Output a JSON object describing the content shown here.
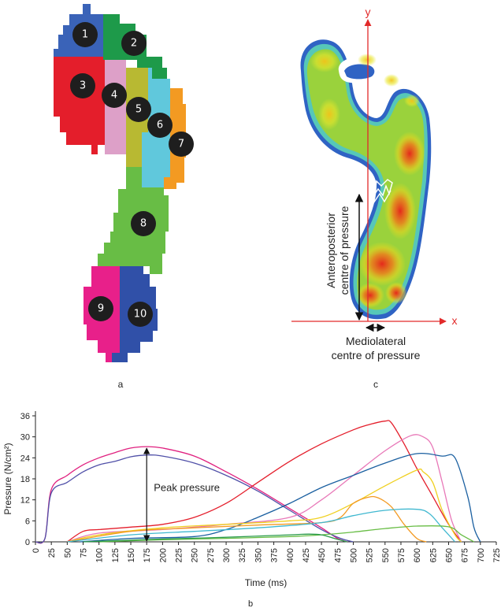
{
  "panels": {
    "a": {
      "label": "a"
    },
    "b": {
      "label": "b"
    },
    "c": {
      "label": "c"
    }
  },
  "zones": [
    {
      "id": "1",
      "color": "#3a63b8"
    },
    {
      "id": "2",
      "color": "#1e9a4a"
    },
    {
      "id": "3",
      "color": "#e41e2b"
    },
    {
      "id": "4",
      "color": "#dda0c8"
    },
    {
      "id": "5",
      "color": "#b8b932"
    },
    {
      "id": "6",
      "color": "#60c8dc"
    },
    {
      "id": "7",
      "color": "#f39a22"
    },
    {
      "id": "8",
      "color": "#68bd45"
    },
    {
      "id": "9",
      "color": "#e8208a"
    },
    {
      "id": "10",
      "color": "#3050a8"
    }
  ],
  "heatmap": {
    "y_axis": "y",
    "x_axis": "x",
    "anteroposterior_line1": "Anteroposterior",
    "anteroposterior_line2": "centre of pressure",
    "mediolateral_line1": "Mediolateral",
    "mediolateral_line2": "centre of pressure"
  },
  "chart_data": {
    "type": "line",
    "xlabel": "Time (ms)",
    "ylabel": "Pressure (N/cm²)",
    "xlim": [
      0,
      725
    ],
    "ylim": [
      0,
      36
    ],
    "xticks": [
      0,
      25,
      50,
      75,
      100,
      125,
      150,
      175,
      200,
      225,
      250,
      275,
      300,
      325,
      350,
      375,
      400,
      425,
      450,
      475,
      500,
      525,
      550,
      575,
      600,
      625,
      650,
      675,
      700,
      725
    ],
    "yticks": [
      0,
      6,
      12,
      18,
      24,
      30,
      36
    ],
    "annotation": "Peak pressure",
    "series": [
      {
        "color": "#e0207f",
        "x": [
          0,
          15,
          25,
          50,
          75,
          100,
          125,
          150,
          175,
          200,
          250,
          300,
          350,
          400,
          450,
          475,
          490
        ],
        "y": [
          0,
          1,
          15,
          19,
          22,
          24,
          25.5,
          26.8,
          27.2,
          26.8,
          24.5,
          20,
          15,
          9.5,
          4,
          1,
          0
        ]
      },
      {
        "color": "#5050a8",
        "x": [
          0,
          15,
          25,
          50,
          75,
          100,
          125,
          150,
          175,
          200,
          250,
          300,
          350,
          400,
          450,
          480,
          500
        ],
        "y": [
          0,
          1,
          14,
          17,
          20,
          22,
          23,
          24.3,
          24.8,
          24.5,
          22.5,
          19,
          14.5,
          9,
          3.5,
          1,
          0
        ]
      },
      {
        "color": "#e41e2b",
        "x": [
          50,
          75,
          100,
          150,
          200,
          250,
          300,
          350,
          400,
          450,
          500,
          525,
          550,
          560,
          580,
          600,
          625,
          650,
          670
        ],
        "y": [
          0,
          3,
          3.5,
          4.2,
          5,
          7,
          11,
          17,
          23,
          28,
          32,
          33.5,
          34.5,
          34,
          28,
          21,
          13,
          5,
          0
        ]
      },
      {
        "color": "#e878b8",
        "x": [
          50,
          100,
          200,
          300,
          400,
          450,
          500,
          550,
          590,
          610,
          625,
          640,
          655,
          670
        ],
        "y": [
          0,
          2.5,
          3.5,
          5,
          7,
          12,
          19,
          26,
          30.3,
          30,
          27,
          17,
          6,
          0
        ]
      },
      {
        "color": "#1a5fa0",
        "x": [
          70,
          150,
          250,
          300,
          350,
          400,
          450,
          500,
          550,
          600,
          640,
          660,
          680,
          690,
          700
        ],
        "y": [
          0,
          1,
          1.5,
          3.5,
          7,
          11,
          15.5,
          19,
          22.5,
          25.2,
          24.5,
          24,
          13,
          4,
          0
        ]
      },
      {
        "color": "#f0d020",
        "x": [
          50,
          100,
          200,
          300,
          400,
          450,
          500,
          550,
          600,
          610,
          625,
          640,
          660,
          670
        ],
        "y": [
          0,
          2,
          4,
          5,
          6,
          7,
          11,
          16,
          20.5,
          20,
          17,
          9,
          2,
          0
        ]
      },
      {
        "color": "#f39a22",
        "x": [
          50,
          150,
          250,
          350,
          450,
          480,
          500,
          525,
          540,
          560,
          580,
          600,
          615
        ],
        "y": [
          0,
          3,
          4,
          4.8,
          5.5,
          7,
          11,
          12.8,
          12.5,
          10,
          5,
          1,
          0
        ]
      },
      {
        "color": "#40b8d0",
        "x": [
          50,
          150,
          250,
          350,
          450,
          500,
          550,
          600,
          620,
          640,
          660
        ],
        "y": [
          0,
          2,
          3,
          4,
          5.5,
          7.5,
          9,
          9.3,
          8,
          4,
          0
        ]
      },
      {
        "color": "#68bd45",
        "x": [
          100,
          200,
          300,
          400,
          450,
          500,
          550,
          600,
          650,
          670,
          690
        ],
        "y": [
          0,
          0.6,
          1,
          1.5,
          2,
          2.8,
          3.8,
          4.5,
          4.3,
          2,
          0
        ]
      },
      {
        "color": "#2a9a4a",
        "x": [
          75,
          200,
          300,
          400,
          430,
          450,
          470,
          490
        ],
        "y": [
          0,
          0.8,
          1.3,
          2,
          2.2,
          2,
          1,
          0
        ]
      }
    ]
  }
}
